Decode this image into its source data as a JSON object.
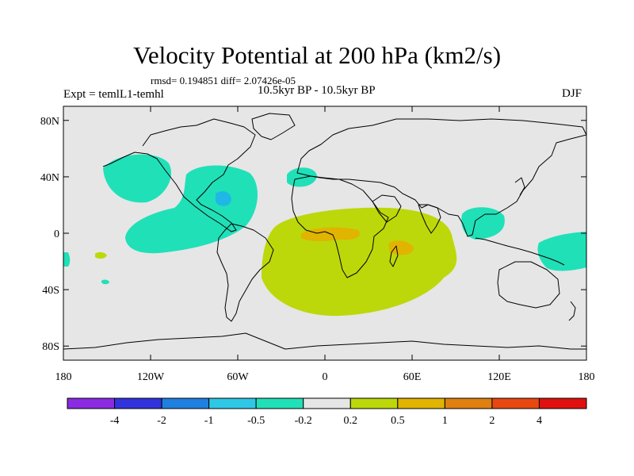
{
  "title": "Velocity Potential at 200 hPa (km2/s)",
  "stats_text": "rmsd= 0.194851 diff= 2.07426e-05",
  "left_label": "Expt = temlL1-temhl",
  "center_label": "10.5kyr BP - 10.5kyr BP",
  "right_label": "DJF",
  "map": {
    "projection": "cylindrical-equidistant",
    "lon_range": [
      -180,
      180
    ],
    "lat_range": [
      -90,
      90
    ],
    "background_color": "#e6e6e6",
    "lat_ticks": [
      {
        "value": 80,
        "label": "80N"
      },
      {
        "value": 40,
        "label": "40N"
      },
      {
        "value": 0,
        "label": "0"
      },
      {
        "value": -40,
        "label": "40S"
      },
      {
        "value": -80,
        "label": "80S"
      }
    ],
    "lon_ticks": [
      {
        "value": -180,
        "label": "180"
      },
      {
        "value": -120,
        "label": "120W"
      },
      {
        "value": -60,
        "label": "60W"
      },
      {
        "value": 0,
        "label": "0"
      },
      {
        "value": 60,
        "label": "60E"
      },
      {
        "value": 120,
        "label": "120E"
      },
      {
        "value": 180,
        "label": "180"
      }
    ]
  },
  "colorbar": {
    "colors": [
      "#8a2be2",
      "#3333dd",
      "#1f80e0",
      "#2ec8e6",
      "#20e0b8",
      "#e6e6e6",
      "#bcd80a",
      "#e0b400",
      "#e08010",
      "#e84810",
      "#e01010"
    ],
    "labels": [
      "-4",
      "-2",
      "-1",
      "-0.5",
      "-0.2",
      "0.2",
      "0.5",
      "1",
      "2",
      "4"
    ]
  }
}
